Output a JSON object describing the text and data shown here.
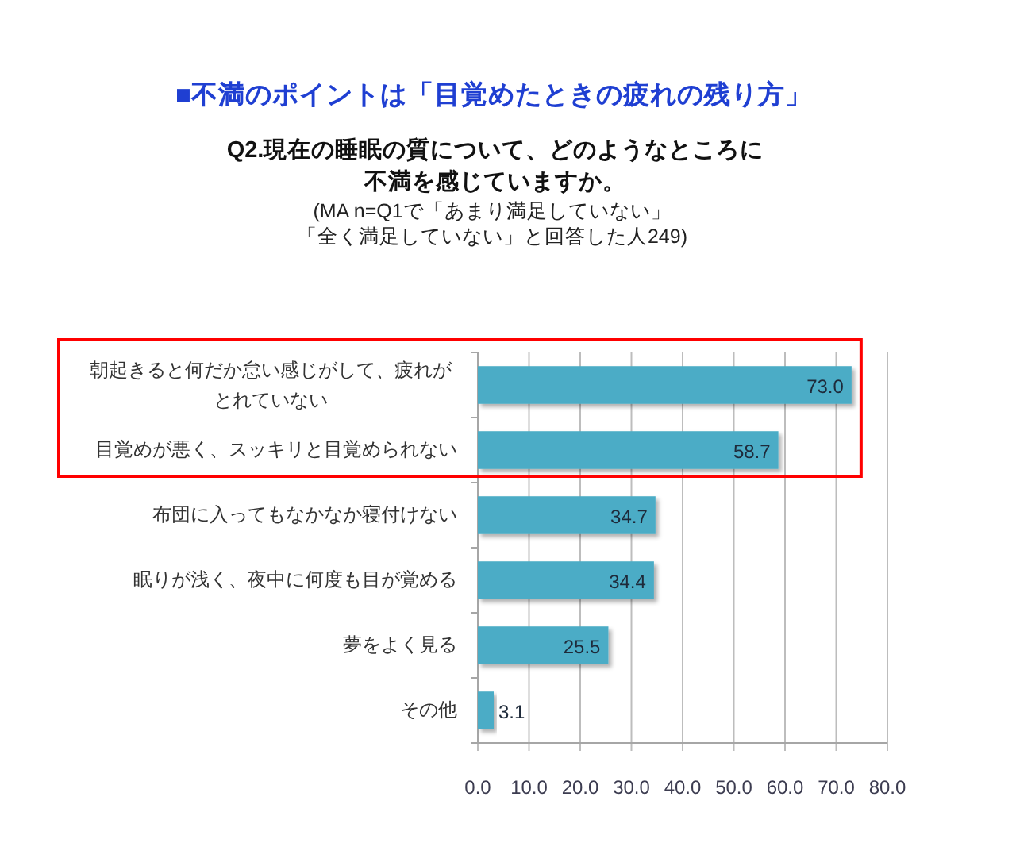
{
  "chart_data": {
    "type": "bar",
    "orientation": "horizontal",
    "title": "■不満のポイントは「目覚めたときの疲れの残り方」",
    "subtitle": "Q2.現在の睡眠の質について、どのようなところに不満を感じていますか。",
    "annotations": [
      "(MA n=Q1で「あまり満足していない」「全く満足していない」と回答した人249)"
    ],
    "categories": [
      "朝起きると何だか怠い感じがして、疲れがとれていない",
      "目覚めが悪く、スッキリと目覚められない",
      "布団に入ってもなかなか寝付けない",
      "眠りが浅く、夜中に何度も目が覚める",
      "夢をよく見る",
      "その他"
    ],
    "values": [
      73.0,
      58.7,
      34.7,
      34.4,
      25.5,
      3.1
    ],
    "value_labels": [
      "73.0",
      "58.7",
      "34.7",
      "34.4",
      "25.5",
      "3.1"
    ],
    "color": "#4bacc6",
    "xlim": [
      0,
      80
    ],
    "xticks": [
      {
        "value": 0,
        "label": "0.0"
      },
      {
        "value": 10,
        "label": "10.0"
      },
      {
        "value": 20,
        "label": "20.0"
      },
      {
        "value": 30,
        "label": "30.0"
      },
      {
        "value": 40,
        "label": "40.0"
      },
      {
        "value": 50,
        "label": "50.0"
      },
      {
        "value": 60,
        "label": "60.0"
      },
      {
        "value": 70,
        "label": "70.0"
      },
      {
        "value": 80,
        "label": "80.0"
      }
    ],
    "grid": "x"
  }
}
